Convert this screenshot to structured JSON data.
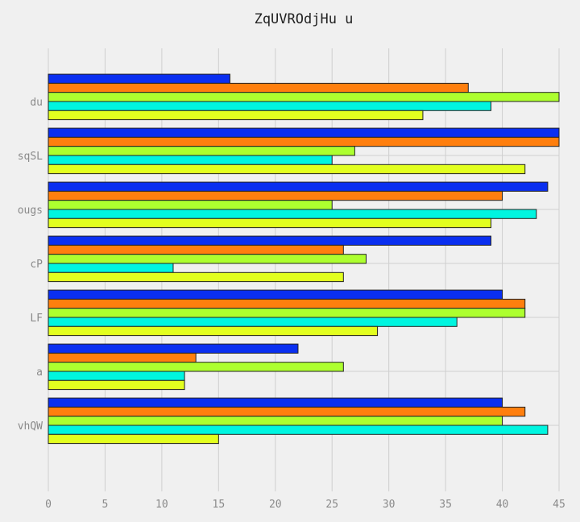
{
  "chart_data": {
    "type": "bar",
    "orientation": "horizontal",
    "title": "ZqUVROdjHu u",
    "xlabel": "",
    "ylabel": "",
    "categories": [
      "du",
      "sqSL",
      "ougs",
      "cP",
      "LF",
      "a",
      "vhQW"
    ],
    "xlim": [
      0,
      45
    ],
    "xticks": [
      0,
      5,
      10,
      15,
      20,
      25,
      30,
      35,
      40,
      45
    ],
    "grid": true,
    "series": [
      {
        "color": "#0a2ff0",
        "values": [
          16,
          45,
          44,
          39,
          40,
          22,
          40
        ]
      },
      {
        "color": "#ff7f0e",
        "values": [
          37,
          45,
          40,
          26,
          42,
          13,
          42
        ]
      },
      {
        "color": "#adff2f",
        "values": [
          45,
          27,
          25,
          28,
          42,
          26,
          40
        ]
      },
      {
        "color": "#00f5e0",
        "values": [
          39,
          25,
          43,
          11,
          36,
          12,
          44
        ]
      },
      {
        "color": "#e2ff1f",
        "values": [
          33,
          42,
          39,
          26,
          29,
          12,
          15
        ]
      }
    ]
  }
}
